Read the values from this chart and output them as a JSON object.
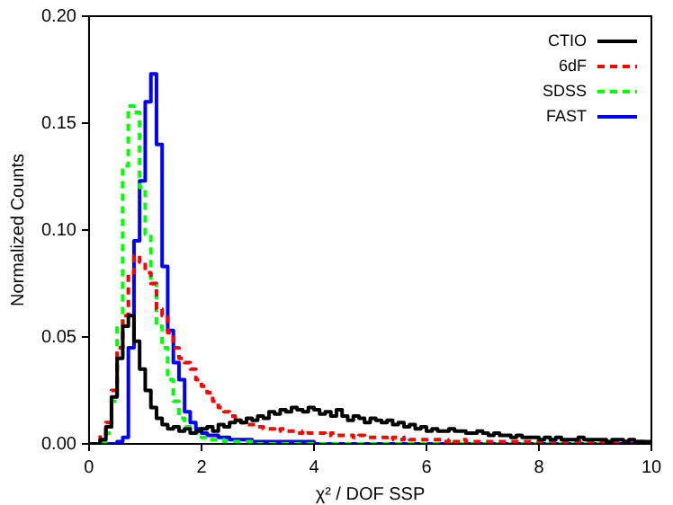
{
  "chart_data": {
    "type": "histogram",
    "xlabel": "χ² / DOF SSP",
    "ylabel": "Normalized Counts",
    "bins": [
      0,
      0.1,
      0.2,
      0.3,
      0.4,
      0.5,
      0.6,
      0.7,
      0.8,
      0.9,
      1,
      1.1,
      1.2,
      1.3,
      1.4,
      1.5,
      1.6,
      1.7,
      1.8,
      1.9,
      2,
      2.1,
      2.2,
      2.3,
      2.4,
      2.5,
      2.6,
      2.7,
      2.8,
      2.9,
      3,
      3.1,
      3.2,
      3.3,
      3.4,
      3.5,
      3.6,
      3.7,
      3.8,
      3.9,
      4,
      4.1,
      4.2,
      4.3,
      4.4,
      4.5,
      4.6,
      4.7,
      4.8,
      4.9,
      5,
      5.1,
      5.2,
      5.3,
      5.4,
      5.5,
      5.6,
      5.7,
      5.8,
      5.9,
      6,
      6.1,
      6.2,
      6.3,
      6.4,
      6.5,
      6.6,
      6.7,
      6.8,
      6.9,
      7,
      7.1,
      7.2,
      7.3,
      7.4,
      7.5,
      7.6,
      7.7,
      7.8,
      7.9,
      8,
      8.1,
      8.2,
      8.3,
      8.4,
      8.5,
      8.6,
      8.7,
      8.8,
      8.9,
      9,
      9.1,
      9.2,
      9.3,
      9.4,
      9.5,
      9.6,
      9.7,
      9.8,
      9.9,
      10
    ],
    "series": [
      {
        "name": "CTIO",
        "color": "#000000",
        "line_style": "solid",
        "values": [
          0,
          0,
          0.002,
          0.008,
          0.022,
          0.04,
          0.055,
          0.06,
          0.048,
          0.035,
          0.025,
          0.017,
          0.012,
          0.009,
          0.007,
          0.008,
          0.006,
          0.007,
          0.005,
          0.006,
          0.007,
          0.008,
          0.006,
          0.009,
          0.008,
          0.01,
          0.011,
          0.01,
          0.012,
          0.011,
          0.013,
          0.012,
          0.015,
          0.014,
          0.016,
          0.015,
          0.017,
          0.016,
          0.015,
          0.017,
          0.016,
          0.014,
          0.015,
          0.013,
          0.016,
          0.013,
          0.011,
          0.013,
          0.012,
          0.01,
          0.012,
          0.011,
          0.01,
          0.011,
          0.009,
          0.01,
          0.008,
          0.009,
          0.007,
          0.008,
          0.006,
          0.007,
          0.006,
          0.006,
          0.007,
          0.006,
          0.006,
          0.005,
          0.005,
          0.006,
          0.005,
          0.004,
          0.005,
          0.004,
          0.004,
          0.003,
          0.004,
          0.003,
          0.003,
          0.003,
          0.002,
          0.003,
          0.002,
          0.003,
          0.002,
          0.002,
          0.002,
          0.003,
          0.002,
          0.002,
          0.002,
          0.002,
          0.001,
          0.002,
          0.002,
          0.001,
          0.002,
          0.001,
          0.001,
          0.001
        ]
      },
      {
        "name": "6dF",
        "color": "#ff0000",
        "line_style": "dashed",
        "values": [
          0,
          0.001,
          0.004,
          0.01,
          0.025,
          0.045,
          0.06,
          0.08,
          0.088,
          0.085,
          0.08,
          0.075,
          0.063,
          0.06,
          0.052,
          0.045,
          0.04,
          0.038,
          0.035,
          0.03,
          0.027,
          0.024,
          0.02,
          0.017,
          0.015,
          0.013,
          0.011,
          0.01,
          0.009,
          0.009,
          0.008,
          0.007,
          0.007,
          0.006,
          0.007,
          0.006,
          0.006,
          0.005,
          0.006,
          0.005,
          0.005,
          0.005,
          0.004,
          0.005,
          0.004,
          0.004,
          0.004,
          0.003,
          0.004,
          0.003,
          0.003,
          0.003,
          0.003,
          0.002,
          0.003,
          0.002,
          0.003,
          0.002,
          0.002,
          0.002,
          0.002,
          0.002,
          0.002,
          0.001,
          0.002,
          0.001,
          0.002,
          0.001,
          0.001,
          0.001,
          0.001,
          0.001,
          0.001,
          0.001,
          0.001,
          0.001,
          0.001,
          0.001,
          0.001,
          0.001,
          0.001,
          0.001,
          0.001,
          0.001,
          0.001,
          0.001,
          0.001,
          0.001,
          0.001,
          0.001,
          0.001,
          0.001,
          0.001,
          0.001,
          0.001,
          0.001,
          0.001,
          0.001,
          0.001,
          0.001
        ]
      },
      {
        "name": "SDSS",
        "color": "#00ff00",
        "line_style": "dashed",
        "values": [
          0,
          0,
          0.001,
          0.005,
          0.02,
          0.055,
          0.13,
          0.158,
          0.155,
          0.12,
          0.098,
          0.075,
          0.055,
          0.045,
          0.03,
          0.02,
          0.012,
          0.008,
          0.005,
          0.005,
          0.003,
          0.002,
          0.002,
          0.002,
          0.001,
          0.001,
          0.001,
          0.001,
          0.001,
          0.001,
          0,
          0,
          0,
          0,
          0,
          0,
          0,
          0,
          0,
          0,
          0,
          0,
          0,
          0,
          0,
          0,
          0,
          0,
          0,
          0,
          0,
          0,
          0,
          0,
          0,
          0,
          0,
          0,
          0,
          0,
          0,
          0,
          0,
          0,
          0,
          0,
          0,
          0,
          0,
          0,
          0,
          0,
          0,
          0,
          0,
          0,
          0,
          0,
          0,
          0,
          0,
          0,
          0,
          0,
          0,
          0,
          0,
          0,
          0,
          0,
          0,
          0,
          0,
          0,
          0,
          0,
          0,
          0,
          0,
          0
        ]
      },
      {
        "name": "FAST",
        "color": "#0000ff",
        "line_style": "solid",
        "values": [
          0,
          0,
          0,
          0,
          0,
          0.001,
          0.003,
          0.045,
          0.095,
          0.123,
          0.16,
          0.173,
          0.14,
          0.083,
          0.053,
          0.038,
          0.03,
          0.015,
          0.01,
          0.007,
          0.005,
          0.004,
          0.004,
          0.003,
          0.003,
          0.002,
          0.002,
          0.002,
          0.002,
          0.001,
          0.001,
          0.001,
          0.001,
          0.001,
          0.001,
          0.001,
          0.001,
          0.001,
          0.001,
          0.001,
          0,
          0,
          0,
          0,
          0,
          0,
          0,
          0,
          0,
          0,
          0,
          0,
          0,
          0,
          0,
          0,
          0,
          0,
          0,
          0,
          0,
          0,
          0,
          0,
          0,
          0,
          0,
          0,
          0,
          0,
          0,
          0,
          0,
          0,
          0,
          0,
          0,
          0,
          0,
          0,
          0,
          0,
          0,
          0,
          0,
          0,
          0,
          0,
          0,
          0,
          0,
          0,
          0,
          0,
          0,
          0,
          0,
          0,
          0,
          0
        ]
      }
    ],
    "xlim": [
      0,
      10
    ],
    "xticks": [
      0,
      2,
      4,
      6,
      8,
      10
    ],
    "ylim": [
      0,
      0.2
    ],
    "yticks": [
      {
        "value": 0,
        "label": "0.00"
      },
      {
        "value": 0.05,
        "label": "0.05"
      },
      {
        "value": 0.1,
        "label": "0.10"
      },
      {
        "value": 0.15,
        "label": "0.15"
      },
      {
        "value": 0.2,
        "label": "0.20"
      }
    ],
    "grid": false,
    "legend": "top right"
  }
}
